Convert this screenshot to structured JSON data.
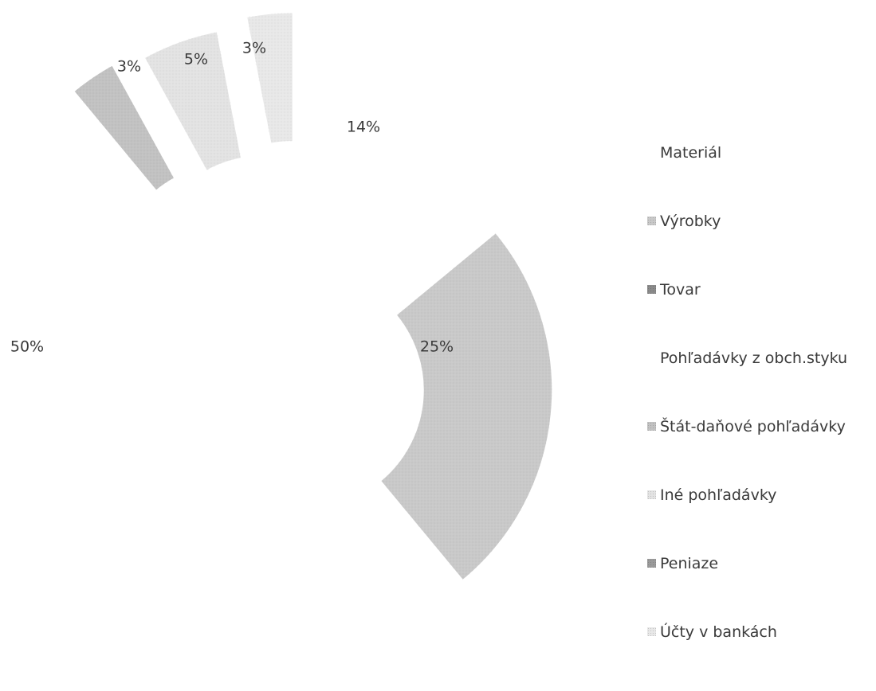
{
  "chart_data": {
    "type": "pie",
    "subtype": "exploded-doughnut",
    "title": "",
    "categories": [
      "Materiál",
      "Výrobky",
      "Tovar",
      "Pohľadávky z obch.styku",
      "Štát-daňové pohľadávky",
      "Iné pohľadávky",
      "Peniaze",
      "Účty v bankách"
    ],
    "values": [
      14,
      25,
      0,
      50,
      3,
      5,
      0,
      3
    ],
    "value_labels": [
      "14%",
      "25%",
      "",
      "50%",
      "3%",
      "5%",
      "",
      "3%"
    ],
    "unit": "%",
    "legend_position": "right",
    "colors": [
      "#ffffff",
      "#c9c9c9",
      "#8a8a8a",
      "#ffffff",
      "#c2c2c2",
      "#e3e3e3",
      "#9a9a9a",
      "#e8e8e8"
    ]
  }
}
